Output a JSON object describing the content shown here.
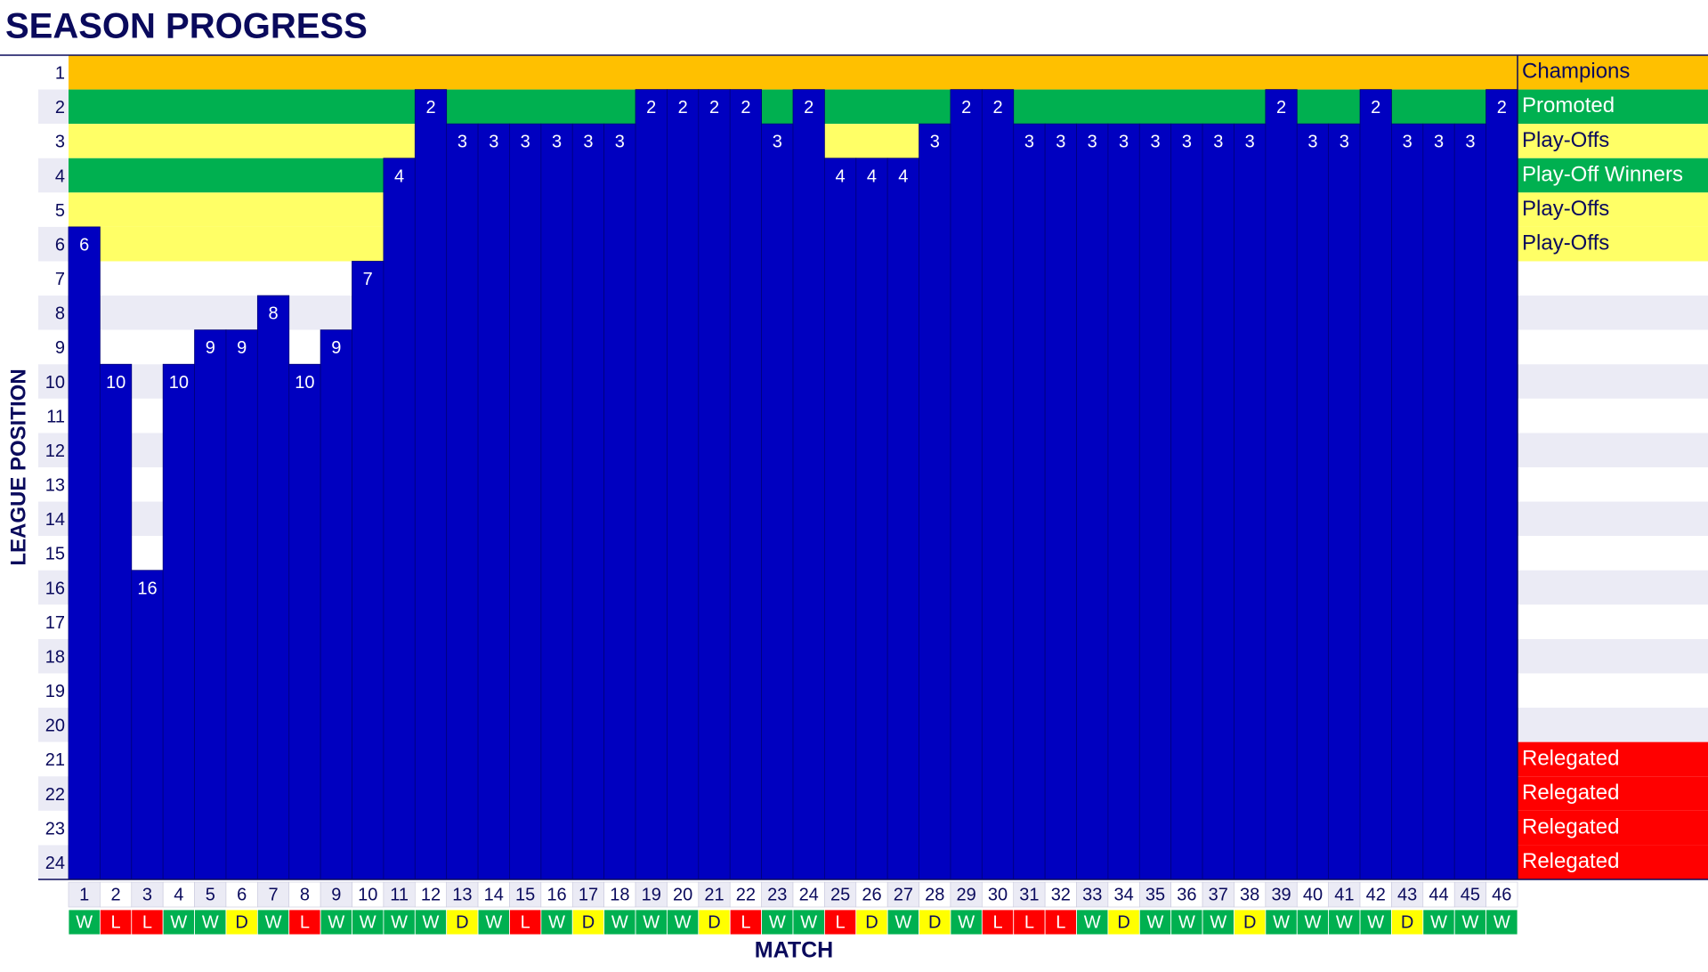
{
  "chart_data": {
    "type": "bar",
    "title": "SEASON PROGRESS",
    "x_label": "MATCH",
    "y_label": "LEAGUE POSITION",
    "categories": [
      1,
      2,
      3,
      4,
      5,
      6,
      7,
      8,
      9,
      10,
      11,
      12,
      13,
      14,
      15,
      16,
      17,
      18,
      19,
      20,
      21,
      22,
      23,
      24,
      25,
      26,
      27,
      28,
      29,
      30,
      31,
      32,
      33,
      34,
      35,
      36,
      37,
      38,
      39,
      40,
      41,
      42,
      43,
      44,
      45,
      46
    ],
    "values": [
      6,
      10,
      16,
      10,
      9,
      9,
      8,
      10,
      9,
      7,
      4,
      2,
      3,
      3,
      3,
      3,
      3,
      3,
      2,
      2,
      2,
      2,
      3,
      2,
      4,
      4,
      4,
      3,
      2,
      2,
      3,
      3,
      3,
      3,
      3,
      3,
      3,
      3,
      2,
      3,
      3,
      2,
      3,
      3,
      3,
      2
    ],
    "results": [
      "W",
      "L",
      "L",
      "W",
      "W",
      "D",
      "W",
      "L",
      "W",
      "W",
      "W",
      "W",
      "D",
      "W",
      "L",
      "W",
      "D",
      "W",
      "W",
      "W",
      "D",
      "L",
      "W",
      "W",
      "L",
      "D",
      "W",
      "D",
      "W",
      "L",
      "L",
      "L",
      "W",
      "D",
      "W",
      "W",
      "W",
      "D",
      "W",
      "W",
      "W",
      "W",
      "D",
      "W",
      "W",
      "W"
    ],
    "result_colors": {
      "W": "#00b050",
      "L": "#ff0000",
      "D": "#ffff00"
    },
    "color": "#0000c0",
    "yticks": [
      1,
      2,
      3,
      4,
      5,
      6,
      7,
      8,
      9,
      10,
      11,
      12,
      13,
      14,
      15,
      16,
      17,
      18,
      19,
      20,
      21,
      22,
      23,
      24
    ],
    "zone_labels": [
      "Champions",
      "Promoted",
      "Play-Offs",
      "Play-Off Winners",
      "Play-Offs",
      "Play-Offs",
      null,
      null,
      null,
      null,
      null,
      null,
      null,
      null,
      null,
      null,
      null,
      null,
      null,
      null,
      "Relegated",
      "Relegated",
      "Relegated",
      "Relegated"
    ],
    "zone_colors": [
      "#ffc000",
      "#00b050",
      "#ffff66",
      "#00b050",
      "#ffff66",
      "#ffff66",
      "#ffffff",
      "#ebebf5",
      "#ffffff",
      "#ebebf5",
      "#ffffff",
      "#ebebf5",
      "#ffffff",
      "#ebebf5",
      "#ffffff",
      "#ebebf5",
      "#ffffff",
      "#ebebf5",
      "#ffffff",
      "#ebebf5",
      "#ff0000",
      "#ff0000",
      "#ff0000",
      "#ff0000"
    ]
  }
}
